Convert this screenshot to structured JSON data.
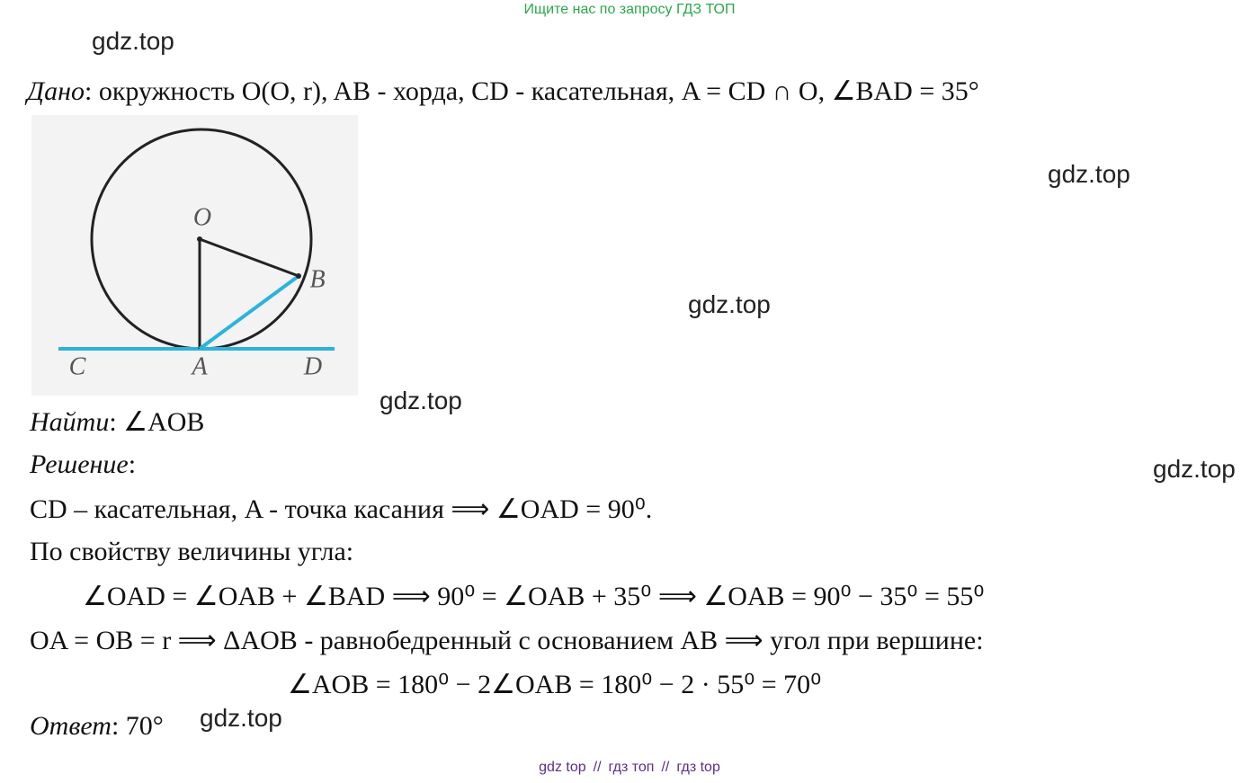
{
  "banner": "Ищите нас по запросу ГДЗ ТОП",
  "watermarks": [
    "gdz.top",
    "gdz.top",
    "gdz.top",
    "gdz.top",
    "gdz.top",
    "gdz.top"
  ],
  "given": {
    "label": "Дано",
    "text": ": окружность O(O, r), AB - хорда, CD - касательная, A = CD ∩ O, ∠BAD =  35°"
  },
  "figure": {
    "labels": [
      "O",
      "B",
      "C",
      "A",
      "D"
    ]
  },
  "find": {
    "label": "Найти",
    "text": ": ∠AOB"
  },
  "solution": {
    "label": "Решение",
    "text": ":"
  },
  "lines": [
    "CD – касательная, A - точка касания ⟹ ∠OAD = 90⁰.",
    "По свойству величины угла:",
    "∠OAD = ∠OAB + ∠BAD  ⟹ 90⁰ = ∠OAB + 35⁰  ⟹ ∠OAB = 90⁰ − 35⁰ = 55⁰",
    "OA = OB = r ⟹ ΔAOB - равнобедренный с основанием AB ⟹ угол при вершине:",
    "∠AOB = 180⁰ − 2∠OAB = 180⁰ − 2 · 55⁰ = 70⁰"
  ],
  "answer": {
    "label": "Ответ",
    "text": ": 70°"
  },
  "footer": {
    "links": [
      "gdz top",
      "гдз топ",
      "гдз top"
    ],
    "separator": "//"
  }
}
